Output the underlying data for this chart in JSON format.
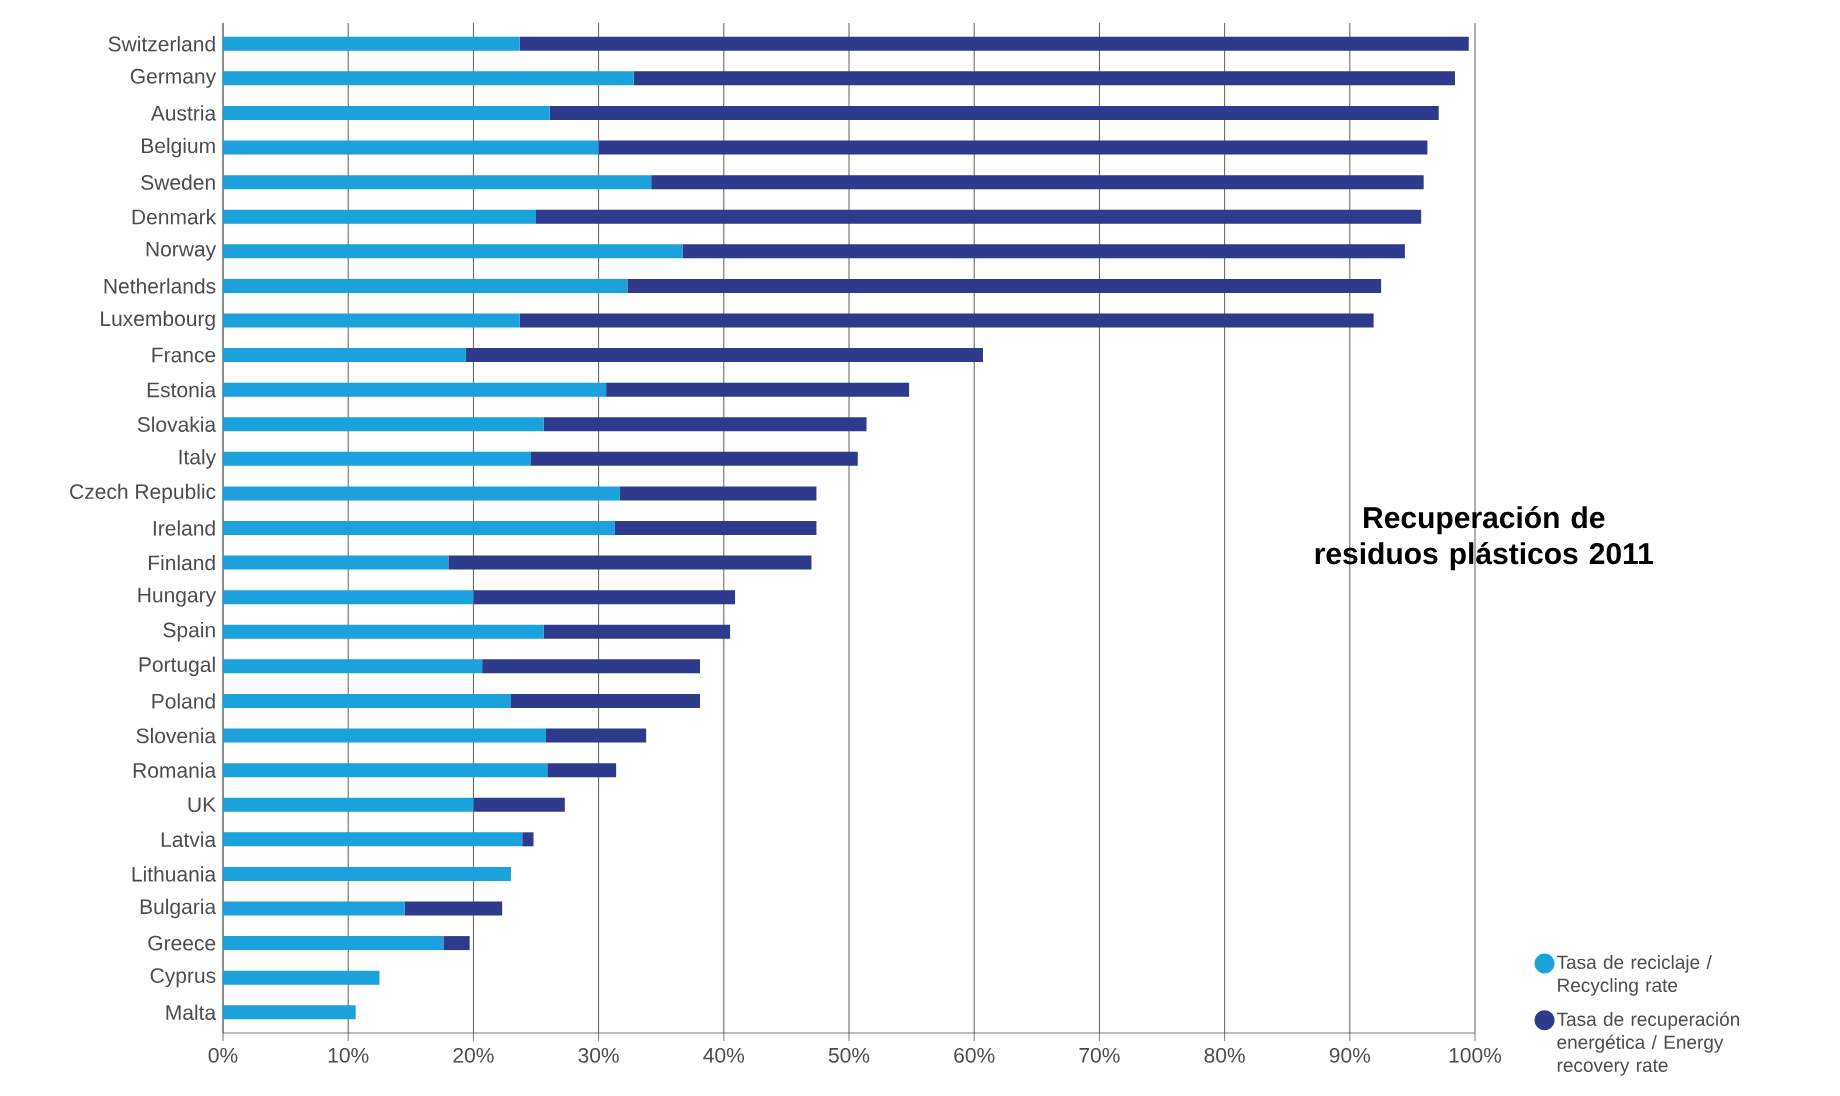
{
  "chart_data": {
    "type": "bar",
    "orientation": "horizontal",
    "stacked": true,
    "title": "Recuperación de residuos plásticos 2011",
    "categories": [
      "Switzerland",
      "Germany",
      "Austria",
      "Belgium",
      "Sweden",
      "Denmark",
      "Norway",
      "Netherlands",
      "Luxembourg",
      "France",
      "Estonia",
      "Slovakia",
      "Italy",
      "Czech Republic",
      "Ireland",
      "Finland",
      "Hungary",
      "Spain",
      "Portugal",
      "Poland",
      "Slovenia",
      "Romania",
      "UK",
      "Latvia",
      "Lithuania",
      "Bulgaria",
      "Greece",
      "Cyprus",
      "Malta"
    ],
    "series": [
      {
        "name": "Tasa de reciclaje / Recycling rate",
        "color": "#1ba1dc",
        "values": [
          23.7,
          32.8,
          26.1,
          30.0,
          34.2,
          25.0,
          36.7,
          32.3,
          23.7,
          19.4,
          30.6,
          25.6,
          24.6,
          31.7,
          31.3,
          18.0,
          20.0,
          25.6,
          20.7,
          23.0,
          25.8,
          25.9,
          20.0,
          23.9,
          23.0,
          14.5,
          17.6,
          12.5,
          10.6
        ]
      },
      {
        "name": "Tasa de recuperación energética / Energy recovery rate",
        "color": "#2e3a8c",
        "values": [
          75.8,
          65.6,
          71.0,
          66.2,
          61.7,
          70.7,
          57.7,
          60.2,
          68.2,
          41.3,
          24.2,
          25.8,
          26.1,
          15.7,
          16.1,
          29.0,
          20.9,
          14.9,
          17.4,
          15.1,
          8.0,
          5.5,
          7.3,
          0.9,
          0,
          7.8,
          2.1,
          0,
          0
        ]
      }
    ],
    "xlim": [
      0,
      100
    ],
    "xticks": [
      {
        "value": 0,
        "label": "0%"
      },
      {
        "value": 10,
        "label": "10%"
      },
      {
        "value": 20,
        "label": "20%"
      },
      {
        "value": 30,
        "label": "30%"
      },
      {
        "value": 40,
        "label": "40%"
      },
      {
        "value": 50,
        "label": "50%"
      },
      {
        "value": 60,
        "label": "60%"
      },
      {
        "value": 70,
        "label": "70%"
      },
      {
        "value": 80,
        "label": "80%"
      },
      {
        "value": 90,
        "label": "90%"
      },
      {
        "value": 100,
        "label": "100%"
      }
    ],
    "grid": "x",
    "legend": "bottom right"
  }
}
